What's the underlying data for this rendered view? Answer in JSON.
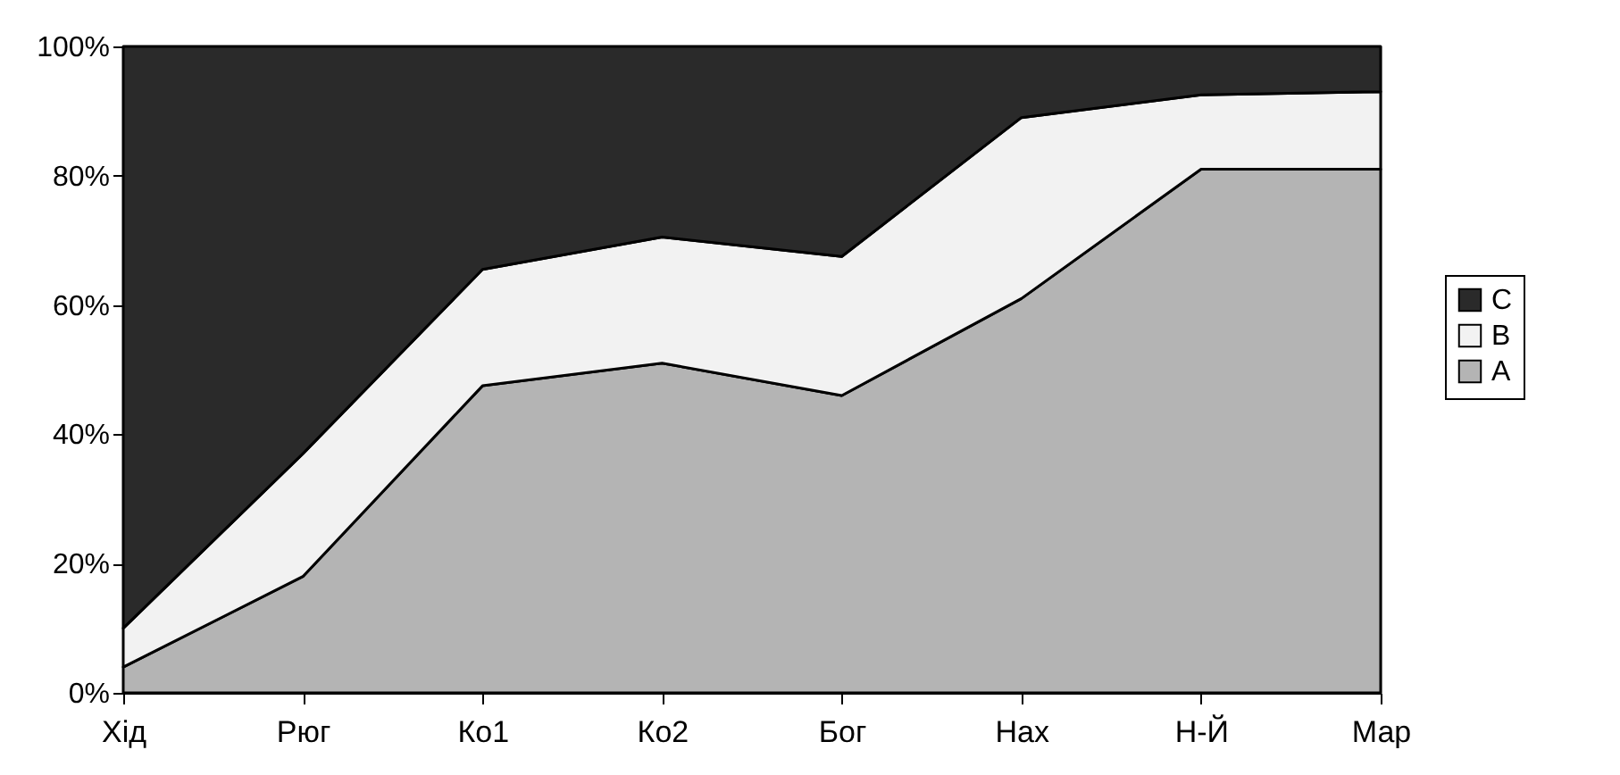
{
  "chart_data": {
    "type": "area",
    "stacked": true,
    "categories": [
      "Хід",
      "Рюг",
      "Ко1",
      "Ко2",
      "Бог",
      "Нах",
      "Н-Й",
      "Мар"
    ],
    "series": [
      {
        "name": "A",
        "color": "#b4b4b4",
        "values": [
          4,
          18,
          47.5,
          51,
          46,
          61,
          81,
          81
        ]
      },
      {
        "name": "B",
        "color": "#f2f2f2",
        "values": [
          6,
          19,
          18,
          19.5,
          21.5,
          28,
          11.5,
          12
        ]
      },
      {
        "name": "C",
        "color": "#2a2a2a",
        "values": [
          90,
          63,
          34.5,
          29.5,
          32.5,
          11,
          7.5,
          7
        ]
      }
    ],
    "ylim": [
      0,
      100
    ],
    "yticks": [
      {
        "value": 0,
        "label": "0%"
      },
      {
        "value": 20,
        "label": "20%"
      },
      {
        "value": 40,
        "label": "40%"
      },
      {
        "value": 60,
        "label": "60%"
      },
      {
        "value": 80,
        "label": "80%"
      },
      {
        "value": 100,
        "label": "100%"
      }
    ],
    "legend": "right"
  }
}
